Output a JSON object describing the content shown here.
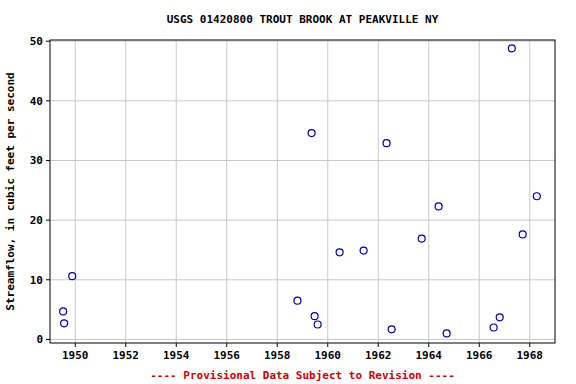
{
  "chart_data": {
    "type": "scatter",
    "title": "USGS 01420800 TROUT BROOK AT PEAKVILLE NY",
    "y_label": "Streamflow, in cubic feet per second",
    "annotations": [
      "---- Provisional Data Subject to Revision ----"
    ],
    "x": [
      1949.52,
      1949.56,
      1949.88,
      1958.8,
      1959.36,
      1959.48,
      1959.6,
      1960.47,
      1961.42,
      1962.33,
      1962.53,
      1963.72,
      1964.39,
      1964.71,
      1966.57,
      1966.81,
      1967.29,
      1967.72,
      1968.28
    ],
    "values": [
      4.7,
      2.7,
      10.6,
      6.5,
      34.6,
      3.9,
      2.5,
      14.6,
      14.9,
      32.9,
      1.7,
      16.9,
      22.3,
      1.0,
      2.0,
      3.7,
      48.8,
      17.6,
      24.0
    ],
    "color": "#0000a0",
    "marker": "circle",
    "xlim": [
      1949,
      1969
    ],
    "xticks": [
      1950,
      1952,
      1954,
      1956,
      1958,
      1960,
      1962,
      1964,
      1966,
      1968
    ],
    "ylim": [
      -0.6,
      50.2
    ],
    "yticks": [
      0,
      10,
      20,
      30,
      40,
      50
    ],
    "grid": true
  }
}
